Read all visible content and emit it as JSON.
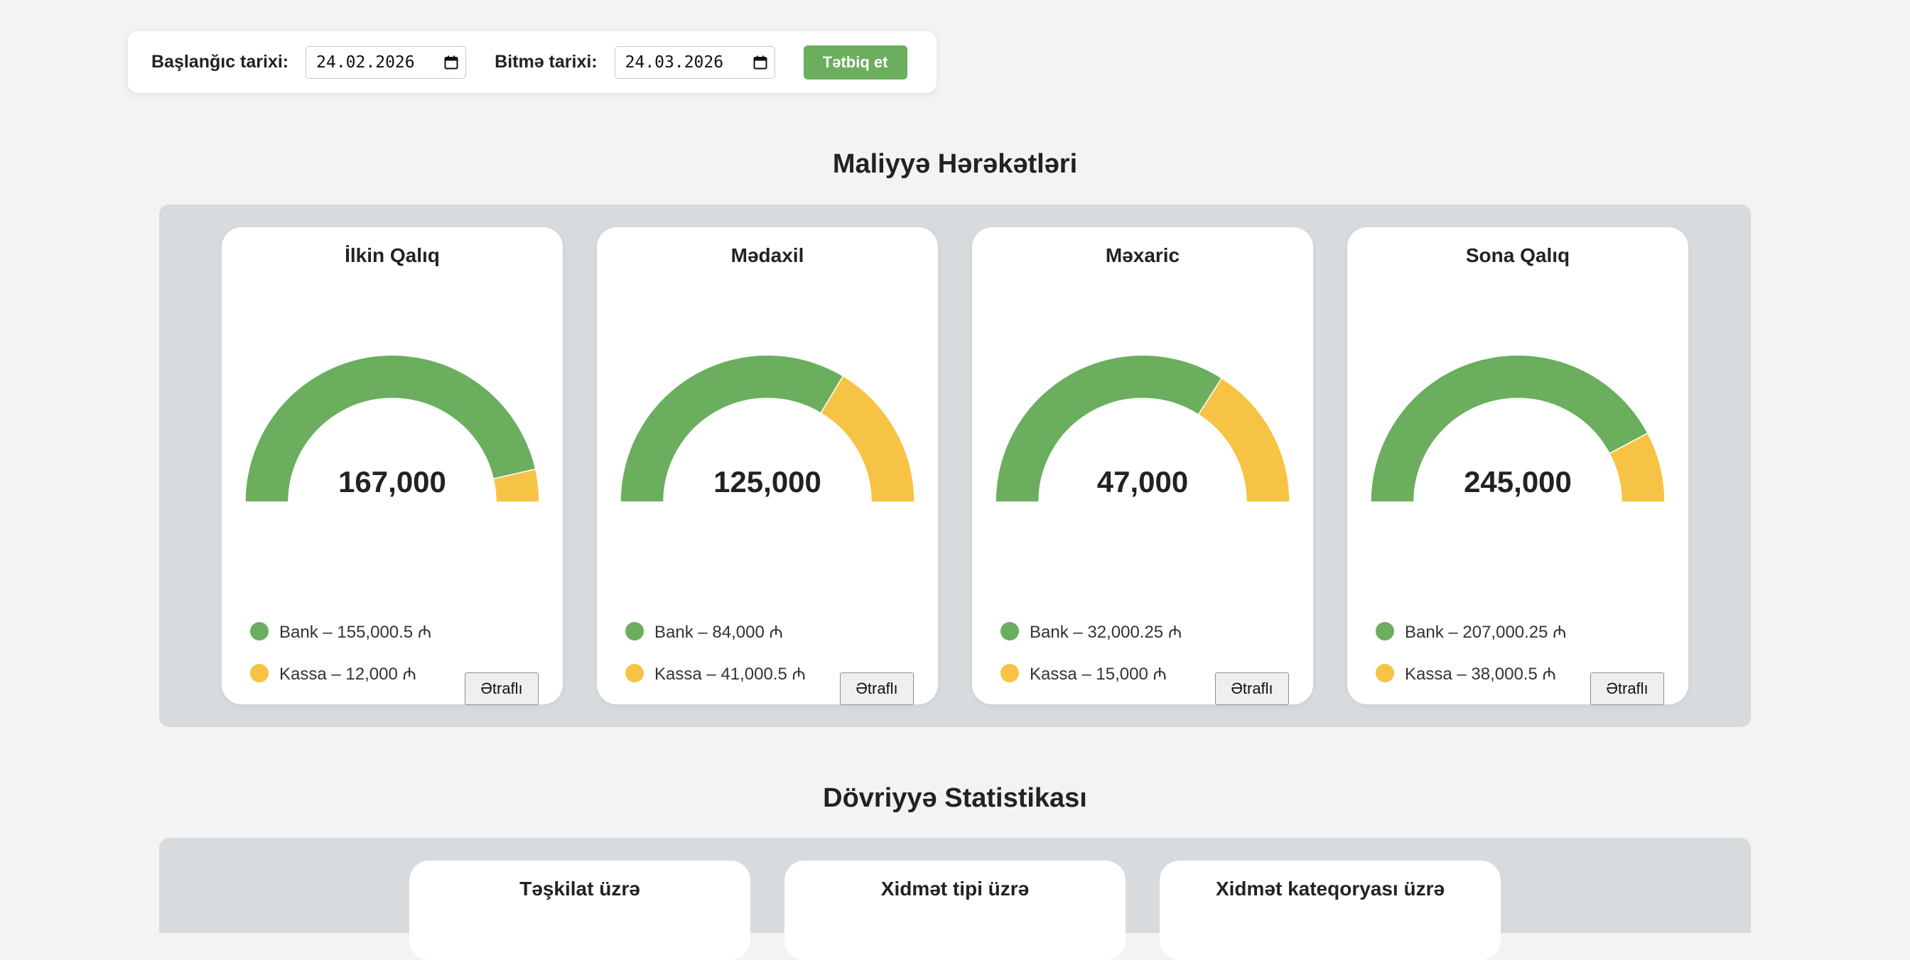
{
  "filters": {
    "start_label": "Başlanğıc tarixi:",
    "start_value": "24.02.2026",
    "end_label": "Bitmə tarixi:",
    "end_value": "24.03.2026",
    "apply_label": "Tətbiq et"
  },
  "finance": {
    "title": "Maliyyə Hərəkətləri",
    "cards": [
      {
        "title": "İlkin Qalıq",
        "total": "167,000",
        "bank_label": "Bank – 155,000.5 ₼",
        "kassa_label": "Kassa – 12,000 ₼",
        "more_label": "Ətraflı"
      },
      {
        "title": "Mədaxil",
        "total": "125,000",
        "bank_label": "Bank – 84,000 ₼",
        "kassa_label": "Kassa – 41,000.5 ₼",
        "more_label": "Ətraflı"
      },
      {
        "title": "Məxaric",
        "total": "47,000",
        "bank_label": "Bank – 32,000.25 ₼",
        "kassa_label": "Kassa – 15,000 ₼",
        "more_label": "Ətraflı"
      },
      {
        "title": "Sona Qalıq",
        "total": "245,000",
        "bank_label": "Bank – 207,000.25 ₼",
        "kassa_label": "Kassa – 38,000.5 ₼",
        "more_label": "Ətraflı"
      }
    ]
  },
  "turnover": {
    "title": "Dövriyyə Statistikası",
    "cards": [
      {
        "title": "Təşkilat üzrə"
      },
      {
        "title": "Xidmət tipi üzrə"
      },
      {
        "title": "Xidmət kateqoryası üzrə"
      }
    ]
  },
  "colors": {
    "bank": "#6aae5e",
    "kassa": "#f7c344",
    "apply": "#6aae5e"
  },
  "chart_data": [
    {
      "type": "pie",
      "title": "İlkin Qalıq",
      "categories": [
        "Bank",
        "Kassa"
      ],
      "values": [
        155000.5,
        12000
      ]
    },
    {
      "type": "pie",
      "title": "Mədaxil",
      "categories": [
        "Bank",
        "Kassa"
      ],
      "values": [
        84000,
        41000.5
      ]
    },
    {
      "type": "pie",
      "title": "Məxaric",
      "categories": [
        "Bank",
        "Kassa"
      ],
      "values": [
        32000.25,
        15000
      ]
    },
    {
      "type": "pie",
      "title": "Sona Qalıq",
      "categories": [
        "Bank",
        "Kassa"
      ],
      "values": [
        207000.25,
        38000.5
      ]
    }
  ]
}
